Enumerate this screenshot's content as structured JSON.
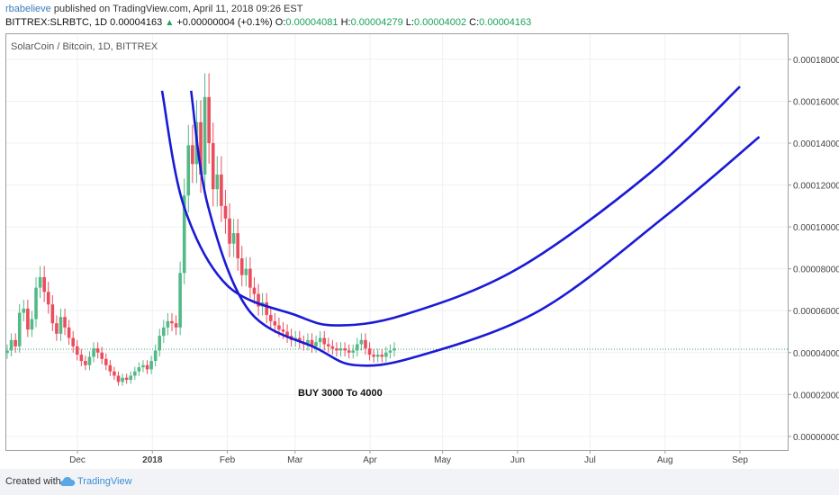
{
  "header": {
    "user": "rbabelieve",
    "published_text": "published on TradingView.com, April 11, 2018 09:26 EST",
    "ticker": "BITTREX:SLRBTC, 1D",
    "last": "0.00004163",
    "change": "+0.00000004 (+0.1%)",
    "o_label": "O:",
    "o_value": "0.00004081",
    "h_label": "H:",
    "h_value": "0.00004279",
    "l_label": "L:",
    "l_value": "0.00004002",
    "c_label": "C:",
    "c_value": "0.00004163"
  },
  "footer": {
    "created_label": "Created with",
    "brand": "TradingView"
  },
  "colors": {
    "up": "#53b987",
    "down": "#eb4d5c",
    "curve": "#1a1ad6",
    "last_price_line": "#2ca56b",
    "grid": "#eef0f3"
  },
  "chart_data": {
    "type": "candlestick",
    "title": "SolarCoin / Bitcoin, 1D, BITTREX",
    "annotation": "BUY 3000 To 4000",
    "last_price": 4.163e-05,
    "x_ticks": [
      "Dec",
      "2018",
      "Feb",
      "Mar",
      "Apr",
      "May",
      "Jun",
      "Jul",
      "Aug",
      "Sep"
    ],
    "y_ticks": [
      "0.00018000",
      "0.00016000",
      "0.00014000",
      "0.00012000",
      "0.00010000",
      "0.00008000",
      "0.00006000",
      "0.00004000",
      "0.00002000",
      "0.00000000"
    ],
    "y_tick_values": [
      0.00018,
      0.00016,
      0.00014,
      0.00012,
      0.0001,
      8e-05,
      6e-05,
      4e-05,
      2e-05,
      0.0
    ],
    "ylim": [
      -6.5e-06,
      0.000192
    ],
    "grid": true,
    "series_close": [
      4.1e-05,
      4.6e-05,
      4.3e-05,
      5.9e-05,
      6.1e-05,
      5.1e-05,
      5.6e-05,
      7.1e-05,
      7.6e-05,
      6.9e-05,
      6.3e-05,
      5.4e-05,
      4.9e-05,
      5.7e-05,
      5.2e-05,
      4.7e-05,
      4.3e-05,
      3.9e-05,
      3.6e-05,
      3.4e-05,
      3.8e-05,
      4.2e-05,
      4e-05,
      3.7e-05,
      3.4e-05,
      3.1e-05,
      2.9e-05,
      2.6e-05,
      2.8e-05,
      2.7e-05,
      2.9e-05,
      3.1e-05,
      3.3e-05,
      3.4e-05,
      3.2e-05,
      3.6e-05,
      4.1e-05,
      4.8e-05,
      5.2e-05,
      5.5e-05,
      5.4e-05,
      5.2e-05,
      7.8e-05,
      0.000115,
      0.000139,
      0.00013,
      0.00015,
      0.000125,
      0.000162,
      0.00014,
      0.000118,
      0.000125,
      0.00011,
      0.000104,
      9.2e-05,
      9.7e-05,
      8.5e-05,
      7.7e-05,
      8e-05,
      7.1e-05,
      6.8e-05,
      6.2e-05,
      6.4e-05,
      5.8e-05,
      5.5e-05,
      5.3e-05,
      5.1e-05,
      5e-05,
      4.8e-05,
      4.6e-05,
      4.7e-05,
      4.5e-05,
      4.4e-05,
      4.6e-05,
      4.3e-05,
      4.5e-05,
      4.7e-05,
      4.4e-05,
      4.3e-05,
      4.2e-05,
      4.1e-05,
      4.2e-05,
      4.1e-05,
      4e-05,
      4.1e-05,
      4.4e-05,
      4.6e-05,
      4.2e-05,
      3.9e-05,
      3.8e-05,
      3.9e-05,
      3.8e-05,
      4e-05,
      4.1e-05,
      4.2e-05
    ],
    "curves": [
      {
        "x": [
          "2018-01-05",
          "2018-01-14",
          "2018-02-01",
          "2018-03-01",
          "2018-03-18",
          "2018-04-15",
          "2018-06-01",
          "2018-07-25",
          "2018-09-01"
        ],
        "y": [
          0.000165,
          0.00011,
          7.2e-05,
          5.8e-05,
          5.3e-05,
          5.8e-05,
          8e-05,
          0.000125,
          0.000167
        ]
      },
      {
        "x": [
          "2018-01-17",
          "2018-01-24",
          "2018-02-10",
          "2018-03-10",
          "2018-03-26",
          "2018-04-20",
          "2018-06-10",
          "2018-08-01",
          "2018-09-09"
        ],
        "y": [
          0.000165,
          0.00011,
          6e-05,
          4.2e-05,
          3.4e-05,
          3.8e-05,
          6e-05,
          0.000105,
          0.000143
        ]
      }
    ]
  }
}
